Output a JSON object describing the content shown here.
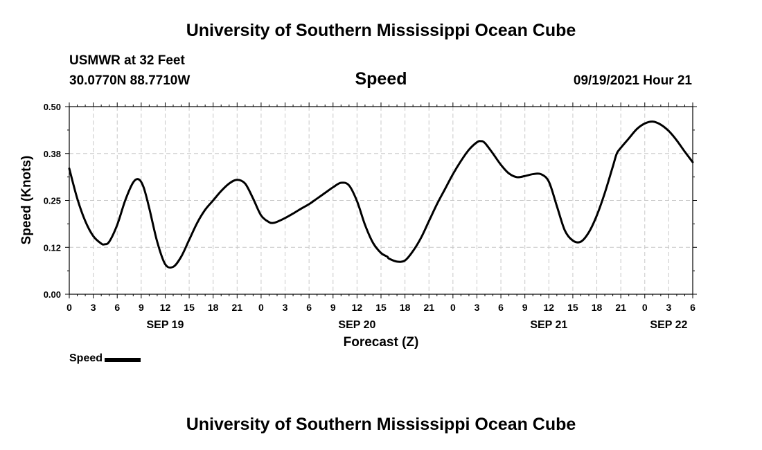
{
  "header": {
    "title": "University of Southern Mississippi Ocean Cube",
    "station": "USMWR at 32 Feet",
    "coordinates": "30.0770N  88.7710W",
    "variable": "Speed",
    "run_time": "09/19/2021 Hour 21"
  },
  "footer": {
    "title": "University of Southern Mississippi Ocean Cube"
  },
  "legend": {
    "label": "Speed"
  },
  "chart_data": {
    "type": "line",
    "title": "Speed",
    "xlabel": "Forecast (Z)",
    "ylabel": "Speed (Knots)",
    "ylim": [
      0,
      0.5
    ],
    "yticks": [
      0.0,
      0.125,
      0.25,
      0.375,
      0.5
    ],
    "ytick_labels": [
      "0.00",
      "0.12",
      "0.25",
      "0.38",
      "0.50"
    ],
    "xlim": [
      0,
      78
    ],
    "x_unit": "hours from 2021-09-19 00Z",
    "xticks": [
      0,
      3,
      6,
      9,
      12,
      15,
      18,
      21,
      24,
      27,
      30,
      33,
      36,
      39,
      42,
      45,
      48,
      51,
      54,
      57,
      60,
      63,
      66,
      69,
      72,
      75,
      78
    ],
    "xtick_labels": [
      "0",
      "3",
      "6",
      "9",
      "12",
      "15",
      "18",
      "21",
      "0",
      "3",
      "6",
      "9",
      "12",
      "15",
      "18",
      "21",
      "0",
      "3",
      "6",
      "9",
      "12",
      "15",
      "18",
      "21",
      "0",
      "3",
      "6"
    ],
    "day_labels": [
      {
        "x": 12,
        "label": "SEP 19"
      },
      {
        "x": 36,
        "label": "SEP 20"
      },
      {
        "x": 60,
        "label": "SEP 21"
      },
      {
        "x": 75,
        "label": "SEP 22"
      }
    ],
    "grid": true,
    "series": [
      {
        "name": "Speed",
        "color": "#000000",
        "x": [
          0,
          1,
          2,
          3,
          4,
          4.4,
          5,
          6,
          7,
          8,
          8.7,
          9.3,
          10,
          11,
          12,
          13,
          14,
          15,
          16,
          17,
          18,
          19,
          20,
          21,
          22,
          23,
          24,
          25,
          25.5,
          26,
          27,
          28,
          29,
          30,
          31,
          32,
          33,
          34,
          35,
          36,
          37,
          38,
          39,
          39.8,
          40,
          41,
          42,
          43,
          44,
          45,
          46,
          47,
          48,
          49,
          50,
          51,
          51.5,
          52,
          53,
          54,
          55,
          56,
          57,
          58,
          59,
          60,
          61,
          62,
          63,
          64,
          65,
          66,
          67,
          68,
          68.5,
          69,
          70,
          71,
          72,
          73,
          74,
          75,
          76,
          77,
          78
        ],
        "values": [
          0.335,
          0.255,
          0.195,
          0.155,
          0.135,
          0.133,
          0.14,
          0.185,
          0.25,
          0.298,
          0.306,
          0.285,
          0.23,
          0.14,
          0.08,
          0.073,
          0.1,
          0.145,
          0.19,
          0.225,
          0.25,
          0.275,
          0.295,
          0.305,
          0.295,
          0.255,
          0.21,
          0.192,
          0.19,
          0.193,
          0.203,
          0.215,
          0.228,
          0.24,
          0.255,
          0.27,
          0.285,
          0.297,
          0.29,
          0.248,
          0.185,
          0.137,
          0.11,
          0.1,
          0.095,
          0.087,
          0.09,
          0.115,
          0.15,
          0.195,
          0.24,
          0.28,
          0.32,
          0.355,
          0.385,
          0.405,
          0.408,
          0.403,
          0.375,
          0.345,
          0.322,
          0.312,
          0.315,
          0.32,
          0.32,
          0.3,
          0.235,
          0.17,
          0.143,
          0.14,
          0.165,
          0.21,
          0.27,
          0.34,
          0.375,
          0.39,
          0.415,
          0.44,
          0.455,
          0.46,
          0.452,
          0.435,
          0.41,
          0.38,
          0.352
        ]
      }
    ]
  }
}
